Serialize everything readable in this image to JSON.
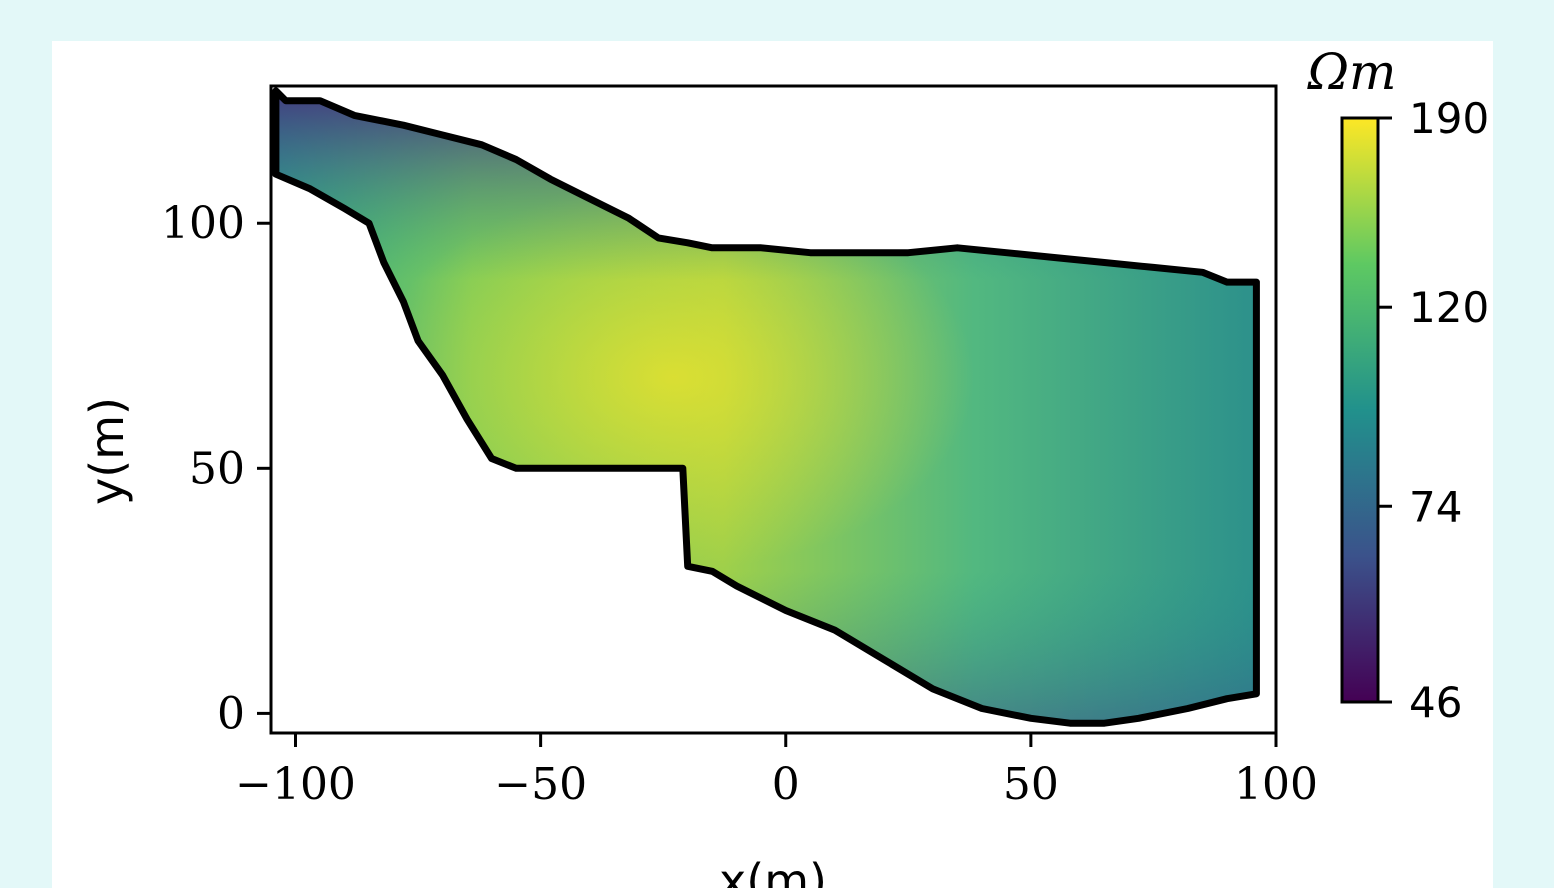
{
  "chart_data": {
    "type": "heatmap",
    "xlabel": "x(m)",
    "ylabel": "y(m)",
    "xlim": [
      -105,
      100
    ],
    "ylim": [
      -4,
      128
    ],
    "x_ticks": [
      -100,
      -50,
      0,
      50,
      100
    ],
    "x_tick_labels": [
      "−100",
      "−50",
      "0",
      "50",
      "100"
    ],
    "y_ticks": [
      0,
      50,
      100
    ],
    "y_tick_labels": [
      "0",
      "50",
      "100"
    ],
    "grid": false,
    "colorbar": {
      "unit": "Ωm",
      "min": 46,
      "max": 190,
      "ticks": [
        46,
        74,
        120,
        190
      ],
      "tick_labels": [
        "46",
        "74",
        "120",
        "190"
      ],
      "colormap": [
        "#440154",
        "#3b528b",
        "#21918c",
        "#5ec962",
        "#fde725"
      ]
    },
    "domain_outline": [
      [
        -104,
        127
      ],
      [
        -102,
        125
      ],
      [
        -95,
        125
      ],
      [
        -88,
        122
      ],
      [
        -78,
        120
      ],
      [
        -70,
        118
      ],
      [
        -62,
        116
      ],
      [
        -55,
        113
      ],
      [
        -48,
        109
      ],
      [
        -40,
        105
      ],
      [
        -32,
        101
      ],
      [
        -26,
        97
      ],
      [
        -20,
        96
      ],
      [
        -15,
        95
      ],
      [
        -5,
        95
      ],
      [
        5,
        94
      ],
      [
        15,
        94
      ],
      [
        25,
        94
      ],
      [
        35,
        95
      ],
      [
        45,
        94
      ],
      [
        55,
        93
      ],
      [
        65,
        92
      ],
      [
        75,
        91
      ],
      [
        85,
        90
      ],
      [
        90,
        88
      ],
      [
        96,
        88
      ],
      [
        96,
        4
      ],
      [
        90,
        3
      ],
      [
        82,
        1
      ],
      [
        72,
        -1
      ],
      [
        65,
        -2
      ],
      [
        58,
        -2
      ],
      [
        50,
        -1
      ],
      [
        40,
        1
      ],
      [
        30,
        5
      ],
      [
        20,
        11
      ],
      [
        10,
        17
      ],
      [
        0,
        21
      ],
      [
        -10,
        26
      ],
      [
        -15,
        29
      ],
      [
        -20,
        30
      ],
      [
        -21,
        50
      ],
      [
        -30,
        50
      ],
      [
        -40,
        50
      ],
      [
        -50,
        50
      ],
      [
        -55,
        50
      ],
      [
        -60,
        52
      ],
      [
        -65,
        60
      ],
      [
        -70,
        69
      ],
      [
        -75,
        76
      ],
      [
        -78,
        84
      ],
      [
        -82,
        92
      ],
      [
        -85,
        100
      ],
      [
        -90,
        103
      ],
      [
        -97,
        107
      ],
      [
        -104,
        110
      ]
    ]
  }
}
